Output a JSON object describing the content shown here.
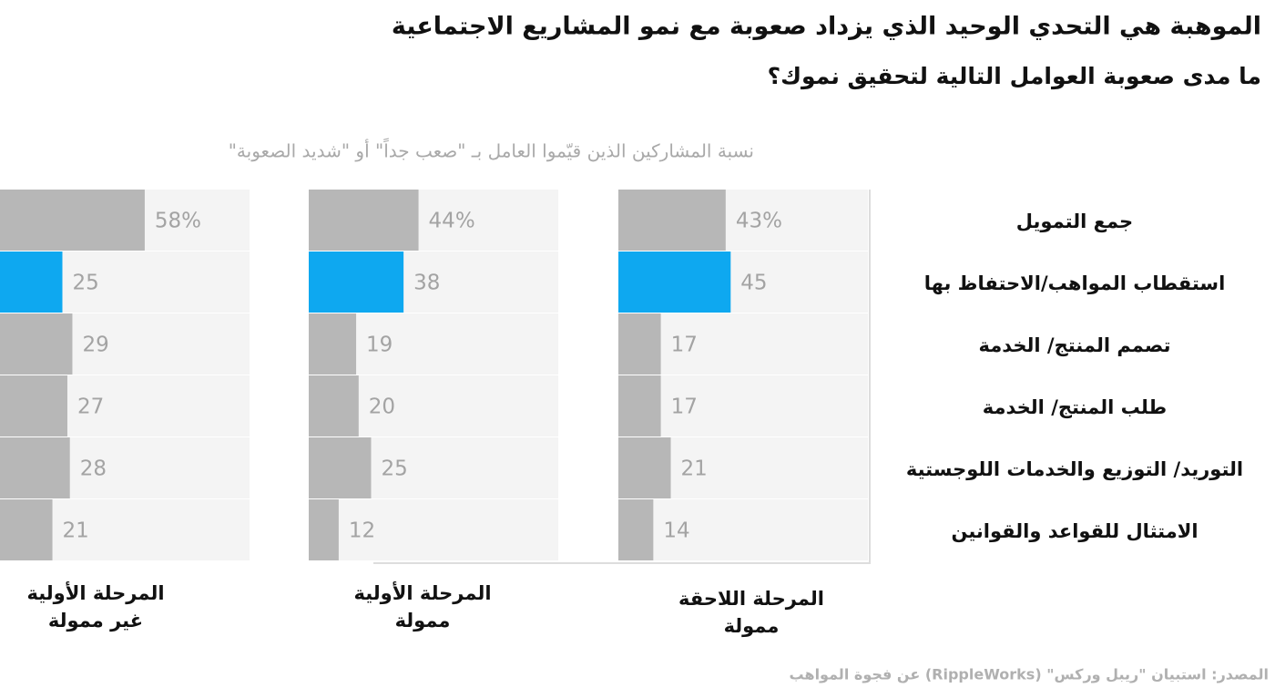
{
  "chart_data": {
    "type": "bar",
    "title": "الموهبة هي التحدي الوحيد الذي يزداد صعوبة مع نمو المشاريع الاجتماعية",
    "subtitle": "ما مدى صعوبة العوامل التالية لتحقيق نموك؟",
    "x_label": "نسبة المشاركين الذين قيّموا العامل بـ \"صعب جداً\" أو \"شديد الصعوبة\"",
    "source": "المصدر: استبيان \"ريبل وركس\" (RippleWorks) عن فجوة المواهب",
    "categories": [
      "جمع التمويل",
      "استقطاب المواهب/الاحتفاظ بها",
      "تصمم المنتج/ الخدمة",
      "طلب المنتج/ الخدمة",
      "التوريد/ التوزيع والخدمات اللوجستية",
      "الامتثال للقواعد والقوانين"
    ],
    "xlim": [
      0,
      100
    ],
    "series": [
      {
        "name": "المرحلة الأولية غير ممولة",
        "values": [
          58,
          25,
          29,
          27,
          28,
          21
        ],
        "value_labels": [
          "58%",
          "25",
          "29",
          "27",
          "28",
          "21"
        ],
        "colors": [
          "#b7b7b7",
          "#0ea8f0",
          "#b7b7b7",
          "#b7b7b7",
          "#b7b7b7",
          "#b7b7b7"
        ]
      },
      {
        "name": "المرحلة الأولية ممولة",
        "values": [
          44,
          38,
          19,
          20,
          25,
          12
        ],
        "value_labels": [
          "44%",
          "38",
          "19",
          "20",
          "25",
          "12"
        ],
        "colors": [
          "#b7b7b7",
          "#0ea8f0",
          "#b7b7b7",
          "#b7b7b7",
          "#b7b7b7",
          "#b7b7b7"
        ]
      },
      {
        "name": "المرحلة اللاحقة ممولة",
        "values": [
          43,
          45,
          17,
          17,
          21,
          14
        ],
        "value_labels": [
          "43%",
          "45",
          "17",
          "17",
          "21",
          "14"
        ],
        "colors": [
          "#b7b7b7",
          "#0ea8f0",
          "#b7b7b7",
          "#b7b7b7",
          "#b7b7b7",
          "#b7b7b7"
        ]
      }
    ]
  }
}
